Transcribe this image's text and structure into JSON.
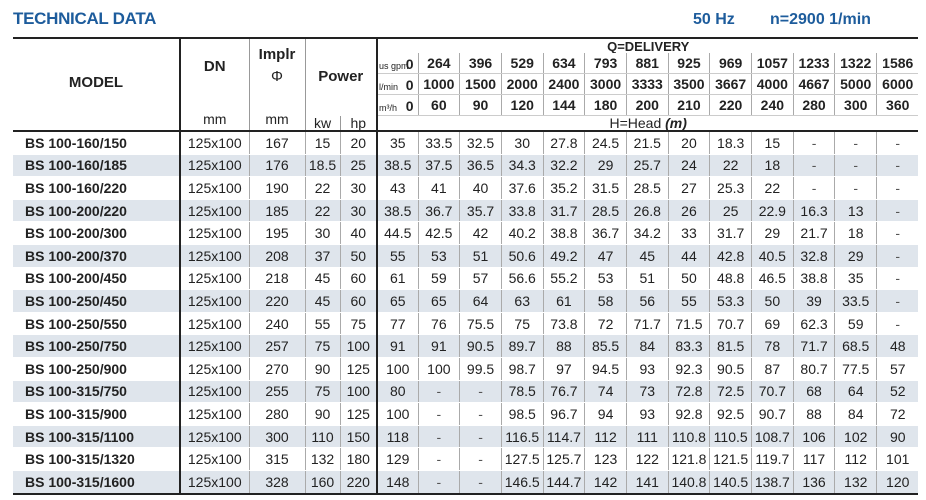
{
  "header": {
    "title": "TECHNICAL DATA",
    "frequency": "50 Hz",
    "speed": "n=2900 1/min",
    "accent_color": "#1d5c9c"
  },
  "columns": {
    "model": "MODEL",
    "dn": "DN",
    "dn_unit": "mm",
    "impeller": "Implr",
    "impeller_symbol": "Φ",
    "impeller_unit": "mm",
    "power": "Power",
    "power_kw": "kw",
    "power_hp": "hp",
    "delivery": "Q=DELIVERY",
    "head": "H=Head",
    "head_unit": "(m)",
    "flow_units": [
      {
        "label": "us gpm",
        "values": [
          "0",
          "264",
          "396",
          "529",
          "634",
          "793",
          "881",
          "925",
          "969",
          "1057",
          "1233",
          "1322",
          "1586"
        ]
      },
      {
        "label": "l/min",
        "values": [
          "0",
          "1000",
          "1500",
          "2000",
          "2400",
          "3000",
          "3333",
          "3500",
          "3667",
          "4000",
          "4667",
          "5000",
          "6000"
        ]
      },
      {
        "label": "m³/h",
        "values": [
          "0",
          "60",
          "90",
          "120",
          "144",
          "180",
          "200",
          "210",
          "220",
          "240",
          "280",
          "300",
          "360"
        ]
      }
    ]
  },
  "rows": [
    {
      "model": "BS 100-160/150",
      "dn": "125x100",
      "impeller": "167",
      "kw": "15",
      "hp": "20",
      "head": [
        "35",
        "33.5",
        "32.5",
        "30",
        "27.8",
        "24.5",
        "21.5",
        "20",
        "18.3",
        "15",
        "-",
        "-",
        "-"
      ]
    },
    {
      "model": "BS 100-160/185",
      "dn": "125x100",
      "impeller": "176",
      "kw": "18.5",
      "hp": "25",
      "head": [
        "38.5",
        "37.5",
        "36.5",
        "34.3",
        "32.2",
        "29",
        "25.7",
        "24",
        "22",
        "18",
        "-",
        "-",
        "-"
      ]
    },
    {
      "model": "BS 100-160/220",
      "dn": "125x100",
      "impeller": "190",
      "kw": "22",
      "hp": "30",
      "head": [
        "43",
        "41",
        "40",
        "37.6",
        "35.2",
        "31.5",
        "28.5",
        "27",
        "25.3",
        "22",
        "-",
        "-",
        "-"
      ]
    },
    {
      "model": "BS 100-200/220",
      "dn": "125x100",
      "impeller": "185",
      "kw": "22",
      "hp": "30",
      "head": [
        "38.5",
        "36.7",
        "35.7",
        "33.8",
        "31.7",
        "28.5",
        "26.8",
        "26",
        "25",
        "22.9",
        "16.3",
        "13",
        "-"
      ]
    },
    {
      "model": "BS 100-200/300",
      "dn": "125x100",
      "impeller": "195",
      "kw": "30",
      "hp": "40",
      "head": [
        "44.5",
        "42.5",
        "42",
        "40.2",
        "38.8",
        "36.7",
        "34.2",
        "33",
        "31.7",
        "29",
        "21.7",
        "18",
        "-"
      ]
    },
    {
      "model": "BS 100-200/370",
      "dn": "125x100",
      "impeller": "208",
      "kw": "37",
      "hp": "50",
      "head": [
        "55",
        "53",
        "51",
        "50.6",
        "49.2",
        "47",
        "45",
        "44",
        "42.8",
        "40.5",
        "32.8",
        "29",
        "-"
      ]
    },
    {
      "model": "BS 100-200/450",
      "dn": "125x100",
      "impeller": "218",
      "kw": "45",
      "hp": "60",
      "head": [
        "61",
        "59",
        "57",
        "56.6",
        "55.2",
        "53",
        "51",
        "50",
        "48.8",
        "46.5",
        "38.8",
        "35",
        "-"
      ]
    },
    {
      "model": "BS 100-250/450",
      "dn": "125x100",
      "impeller": "220",
      "kw": "45",
      "hp": "60",
      "head": [
        "65",
        "65",
        "64",
        "63",
        "61",
        "58",
        "56",
        "55",
        "53.3",
        "50",
        "39",
        "33.5",
        "-"
      ]
    },
    {
      "model": "BS 100-250/550",
      "dn": "125x100",
      "impeller": "240",
      "kw": "55",
      "hp": "75",
      "head": [
        "77",
        "76",
        "75.5",
        "75",
        "73.8",
        "72",
        "71.7",
        "71.5",
        "70.7",
        "69",
        "62.3",
        "59",
        "-"
      ]
    },
    {
      "model": "BS 100-250/750",
      "dn": "125x100",
      "impeller": "257",
      "kw": "75",
      "hp": "100",
      "head": [
        "91",
        "91",
        "90.5",
        "89.7",
        "88",
        "85.5",
        "84",
        "83.3",
        "81.5",
        "78",
        "71.7",
        "68.5",
        "48"
      ]
    },
    {
      "model": "BS 100-250/900",
      "dn": "125x100",
      "impeller": "270",
      "kw": "90",
      "hp": "125",
      "head": [
        "100",
        "100",
        "99.5",
        "98.7",
        "97",
        "94.5",
        "93",
        "92.3",
        "90.5",
        "87",
        "80.7",
        "77.5",
        "57"
      ]
    },
    {
      "model": "BS 100-315/750",
      "dn": "125x100",
      "impeller": "255",
      "kw": "75",
      "hp": "100",
      "head": [
        "80",
        "-",
        "-",
        "78.5",
        "76.7",
        "74",
        "73",
        "72.8",
        "72.5",
        "70.7",
        "68",
        "64",
        "52"
      ]
    },
    {
      "model": "BS 100-315/900",
      "dn": "125x100",
      "impeller": "280",
      "kw": "90",
      "hp": "125",
      "head": [
        "100",
        "-",
        "-",
        "98.5",
        "96.7",
        "94",
        "93",
        "92.8",
        "92.5",
        "90.7",
        "88",
        "84",
        "72"
      ]
    },
    {
      "model": "BS 100-315/1100",
      "dn": "125x100",
      "impeller": "300",
      "kw": "110",
      "hp": "150",
      "head": [
        "118",
        "-",
        "-",
        "116.5",
        "114.7",
        "112",
        "111",
        "110.8",
        "110.5",
        "108.7",
        "106",
        "102",
        "90"
      ]
    },
    {
      "model": "BS 100-315/1320",
      "dn": "125x100",
      "impeller": "315",
      "kw": "132",
      "hp": "180",
      "head": [
        "129",
        "-",
        "-",
        "127.5",
        "125.7",
        "123",
        "122",
        "121.8",
        "121.5",
        "119.7",
        "117",
        "112",
        "101"
      ]
    },
    {
      "model": "BS 100-315/1600",
      "dn": "125x100",
      "impeller": "328",
      "kw": "160",
      "hp": "220",
      "head": [
        "148",
        "-",
        "-",
        "146.5",
        "144.7",
        "142",
        "141",
        "140.8",
        "140.5",
        "138.7",
        "136",
        "132",
        "120"
      ]
    }
  ]
}
